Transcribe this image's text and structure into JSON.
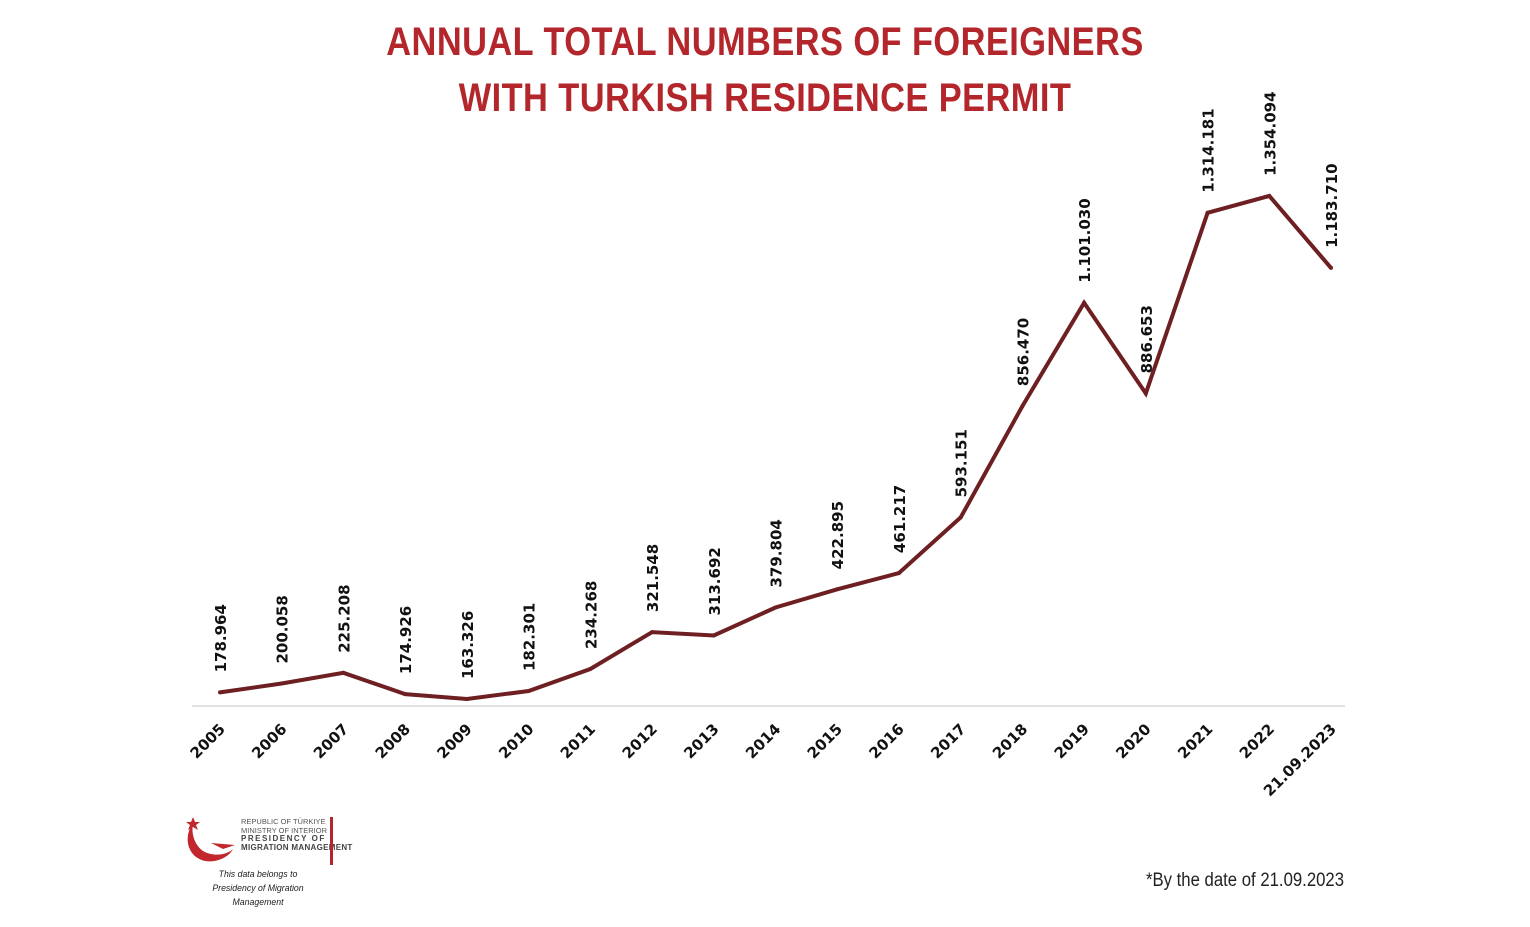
{
  "title_lines": [
    "ANNUAL TOTAL NUMBERS OF FOREIGNERS",
    "WITH TURKISH RESIDENCE PERMIT"
  ],
  "chart_data": {
    "type": "line",
    "title": "ANNUAL TOTAL NUMBERS OF FOREIGNERS WITH TURKISH RESIDENCE PERMIT",
    "categories": [
      "2005",
      "2006",
      "2007",
      "2008",
      "2009",
      "2010",
      "2011",
      "2012",
      "2013",
      "2014",
      "2015",
      "2016",
      "2017",
      "2018",
      "2019",
      "2020",
      "2021",
      "2022",
      "21.09.2023"
    ],
    "values": [
      178964,
      200058,
      225208,
      174926,
      163326,
      182301,
      234268,
      321548,
      313692,
      379804,
      422895,
      461217,
      593151,
      856470,
      1101030,
      886653,
      1314181,
      1354094,
      1183710
    ],
    "data_labels": [
      "178.964",
      "200.058",
      "225.208",
      "174.926",
      "163.326",
      "182.301",
      "234.268",
      "321.548",
      "313.692",
      "379.804",
      "422.895",
      "461.217",
      "593.151",
      "856.470",
      "1.101.030",
      "886.653",
      "1.314.181",
      "1.354.094",
      "1.183.710"
    ],
    "ylim": [
      0,
      1600000
    ],
    "grid": false,
    "legend": "none",
    "colors": {
      "line": "#6e1f22",
      "title": "#b3262b",
      "axis": "#d9d9d9"
    }
  },
  "logo": {
    "line1": "REPUBLIC OF TÜRKIYE",
    "line2": "MINISTRY OF INTERIOR",
    "line3": "PRESIDENCY OF",
    "line4": "MIGRATION MANAGEMENT",
    "caption1": "This data belongs to",
    "caption2": "Presidency of Migration Management"
  },
  "footnote": "*By the date of 21.09.2023"
}
